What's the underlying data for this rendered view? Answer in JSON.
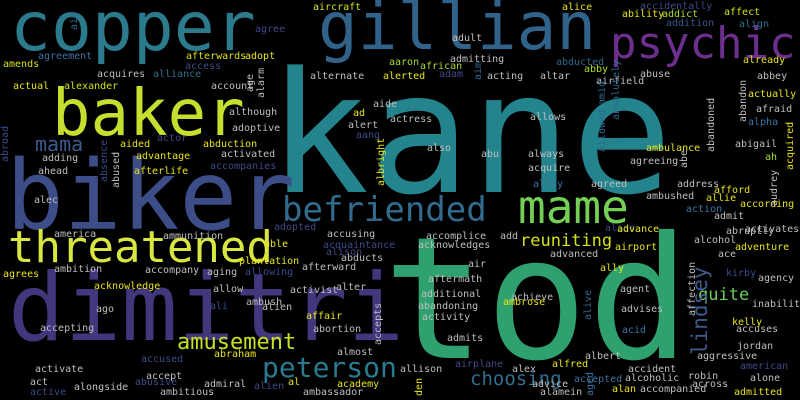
{
  "words": {
    "kane": "kane",
    "tod": "tod",
    "biker": "biker",
    "dimitri": "dimitri",
    "copper": "copper",
    "gillian": "gillian",
    "baker": "baker",
    "psychic": "psychic",
    "threatened": "threatened",
    "mame": "mame",
    "befriended": "befriended",
    "peterson": "peterson",
    "amusement": "amusement",
    "mama": "mama",
    "choosing": "choosing",
    "reuniting": "reuniting",
    "lindsey": "lindsey",
    "quite": "quite",
    "aircraft": "aircraft",
    "alice": "alice",
    "accidentally": "accidentally",
    "affect": "affect",
    "align": "align",
    "ability": "ability",
    "addict": "addict",
    "addition": "addition",
    "already": "already",
    "adult": "adult",
    "agree": "agree",
    "aid": "aid",
    "amends": "amends",
    "agreement": "agreement",
    "afterwards": "afterwards",
    "adopt": "adopt",
    "aaron": "aaron",
    "african": "african",
    "admitting": "admitting",
    "abducted": "abducted",
    "abby": "abby",
    "abbey": "abbey",
    "access": "access",
    "acquires": "acquires",
    "alliance": "alliance",
    "account": "account",
    "alarm": "alarm",
    "age": "age",
    "alternate": "alternate",
    "alerted": "alerted",
    "adam": "adam",
    "aim": "aim",
    "acting": "acting",
    "altar": "altar",
    "airfield": "airfield",
    "abuse": "abuse",
    "actual": "actual",
    "alexander": "alexander",
    "actually": "actually",
    "abandoned": "abandoned",
    "abandon": "abandon",
    "afraid": "afraid",
    "alpha": "alpha",
    "abigail": "abigail",
    "ah": "ah",
    "acquired": "acquired",
    "allowed": "allowed",
    "amid": "amid",
    "although": "although",
    "aide": "aide",
    "ad": "ad",
    "actress": "actress",
    "allows": "allows",
    "abroad": "abroad",
    "adoptive": "adoptive",
    "alert": "alert",
    "aang": "aang",
    "actor": "actor",
    "aided": "aided",
    "abduction": "abduction",
    "also": "also",
    "abu": "abu",
    "always": "always",
    "ambulance": "ambulance",
    "agreeing": "agreeing",
    "abe": "abe",
    "absence": "absence",
    "adding": "adding",
    "ahead": "ahead",
    "advantage": "advantage",
    "activated": "activated",
    "accompanies": "accompanies",
    "abused": "abused",
    "afterlife": "afterlife",
    "acquire": "acquire",
    "alley": "alley",
    "agreed": "agreed",
    "address": "address",
    "afford": "afford",
    "audrey": "audrey",
    "according": "according",
    "allie": "allie",
    "action": "action",
    "admit": "admit",
    "activates": "activates",
    "alec": "alec",
    "albright": "albright",
    "ambushed": "ambushed",
    "america": "america",
    "ammunition": "ammunition",
    "adopted": "adopted",
    "accusing": "accusing",
    "accomplice": "accomplice",
    "add": "add",
    "alias": "alias",
    "advance": "advance",
    "alcohol": "alcohol",
    "ace": "ace",
    "adventure": "adventure",
    "abruptly": "abruptly",
    "able": "able",
    "acquaintance": "acquaintance",
    "acknowledges": "acknowledges",
    "advanced": "advanced",
    "airport": "airport",
    "alison": "alison",
    "ambition": "ambition",
    "accompany": "accompany",
    "aging": "aging",
    "allowing": "allowing",
    "abducts": "abducts",
    "ally": "ally",
    "kirby": "kirby",
    "agency": "agency",
    "affection": "affection",
    "agrees": "agrees",
    "acknowledge": "acknowledge",
    "plantation": "plantation",
    "afterward": "afterward",
    "air": "air",
    "inability": "inability",
    "allow": "allow",
    "activist": "activist",
    "alter": "alter",
    "aftermath": "aftermath",
    "ago": "ago",
    "ambush": "ambush",
    "additional": "additional",
    "achieve": "achieve",
    "agent": "agent",
    "ali": "ali",
    "alien": "alien",
    "affair": "affair",
    "abandoning": "abandoning",
    "ambrose": "ambrose",
    "alive": "alive",
    "advises": "advises",
    "kelly": "kelly",
    "accepting": "accepting",
    "abortion": "abortion",
    "accepts": "accepts",
    "activity": "activity",
    "acid": "acid",
    "accuses": "accuses",
    "accused": "accused",
    "abraham": "abraham",
    "almost": "almost",
    "admits": "admits",
    "jordan": "jordan",
    "albert": "albert",
    "aggressive": "aggressive",
    "american": "american",
    "activate": "activate",
    "accept": "accept",
    "alex": "alex",
    "accident": "accident",
    "act": "act",
    "abusive": "abusive",
    "admiral": "admiral",
    "al": "al",
    "academy": "academy",
    "allison": "allison",
    "airplane": "airplane",
    "alfred": "alfred",
    "advice": "advice",
    "accepted": "accepted",
    "alcoholic": "alcoholic",
    "robin": "robin",
    "across": "across",
    "alone": "alone",
    "alongside": "alongside",
    "ambitious": "ambitious",
    "alien2": "alien",
    "ambassador": "ambassador",
    "den": "den",
    "alamein": "alamein",
    "aged": "aged",
    "alan": "alan",
    "accompanied": "accompanied",
    "admitted": "admitted",
    "active": "active",
    "absolutely": "absolutely"
  }
}
